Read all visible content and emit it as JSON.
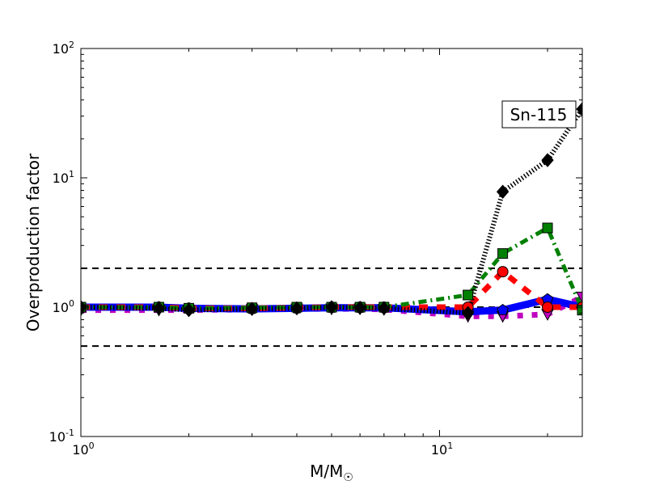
{
  "chart_data": {
    "type": "line",
    "title": "",
    "annotation": "Sn-115",
    "xlabel": "M/M",
    "xlabel_sub": "☉",
    "ylabel": "Overproduction factor",
    "xscale": "log",
    "yscale": "log",
    "xlim": [
      1,
      25
    ],
    "ylim": [
      0.1,
      100
    ],
    "x_ticks": [
      {
        "value": 1,
        "base": "10",
        "exp": "0"
      },
      {
        "value": 10,
        "base": "10",
        "exp": "1"
      }
    ],
    "y_ticks": [
      {
        "value": 0.1,
        "base": "10",
        "exp": "-1"
      },
      {
        "value": 1,
        "base": "10",
        "exp": "0"
      },
      {
        "value": 10,
        "base": "10",
        "exp": "1"
      },
      {
        "value": 100,
        "base": "10",
        "exp": "2"
      }
    ],
    "reference_lines": [
      2,
      1,
      0.5
    ],
    "x": [
      1,
      1.65,
      2,
      3,
      4,
      5,
      6,
      7,
      12,
      15,
      20,
      25
    ],
    "series": [
      {
        "name": "magenta-triangles",
        "color": "#bf00bf",
        "marker": "triangle",
        "values": [
          0.95,
          0.95,
          0.95,
          0.96,
          0.97,
          0.97,
          0.97,
          0.96,
          0.85,
          0.85,
          0.88,
          1.2
        ]
      },
      {
        "name": "blue-pentagons",
        "color": "#0000ff",
        "marker": "pentagon",
        "values": [
          1.0,
          1.0,
          0.98,
          0.97,
          0.98,
          0.99,
          0.99,
          0.99,
          0.92,
          0.95,
          1.15,
          1.0
        ]
      },
      {
        "name": "red-circles",
        "color": "#ff0000",
        "marker": "circle",
        "values": [
          1.0,
          1.0,
          0.98,
          0.98,
          0.99,
          1.0,
          1.0,
          1.0,
          1.0,
          1.88,
          1.0,
          1.0
        ]
      },
      {
        "name": "green-squares",
        "color": "#008000",
        "marker": "square",
        "values": [
          1.0,
          1.0,
          0.98,
          0.99,
          1.0,
          1.0,
          1.0,
          1.0,
          1.24,
          2.6,
          4.1,
          0.95
        ]
      },
      {
        "name": "black-diamonds",
        "color": "#000000",
        "marker": "diamond",
        "values": [
          1.0,
          0.98,
          0.95,
          0.97,
          0.98,
          1.0,
          0.99,
          0.98,
          0.9,
          7.8,
          13.7,
          34
        ]
      }
    ]
  }
}
